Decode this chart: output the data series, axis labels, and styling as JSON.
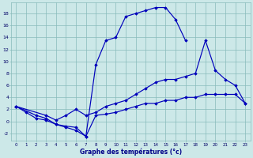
{
  "bg_color": "#cce8e8",
  "grid_color": "#88bbbb",
  "line_color": "#0000bb",
  "xlabel": "Graphe des températures (°c)",
  "xlabel_color": "#000088",
  "xlim": [
    -0.5,
    23.5
  ],
  "ylim": [
    -3.2,
    19.8
  ],
  "xtick_vals": [
    0,
    1,
    2,
    3,
    4,
    5,
    6,
    7,
    8,
    9,
    10,
    11,
    12,
    13,
    14,
    15,
    16,
    17,
    18,
    19,
    20,
    21,
    22,
    23
  ],
  "ytick_vals": [
    -2,
    0,
    2,
    4,
    6,
    8,
    10,
    12,
    14,
    16,
    18
  ],
  "curve1_x": [
    0,
    1,
    2,
    3,
    4,
    5,
    6,
    7,
    8,
    9,
    10,
    11,
    12,
    13,
    14,
    15,
    16,
    17
  ],
  "curve1_y": [
    2.5,
    1.5,
    0.5,
    0.2,
    -0.5,
    -1.0,
    -1.5,
    -2.5,
    9.5,
    13.5,
    14.0,
    17.5,
    18.0,
    18.5,
    19.0,
    19.0,
    17.0,
    13.5
  ],
  "curve2_x": [
    0,
    3,
    4,
    5,
    6,
    7,
    8,
    9,
    10,
    11,
    12,
    13,
    14,
    15,
    16,
    17,
    18,
    19,
    20,
    21,
    22,
    23
  ],
  "curve2_y": [
    2.5,
    1.0,
    0.2,
    1.0,
    2.0,
    1.0,
    1.5,
    2.5,
    3.0,
    3.5,
    4.5,
    5.5,
    6.5,
    7.0,
    7.0,
    7.5,
    8.0,
    13.5,
    8.5,
    7.0,
    6.0,
    3.0
  ],
  "curve3_x": [
    0,
    2,
    3,
    4,
    5,
    6,
    7,
    8,
    9,
    10,
    11,
    12,
    13,
    14,
    15,
    16,
    17,
    18,
    19,
    20,
    21,
    22,
    23
  ],
  "curve3_y": [
    2.5,
    1.0,
    0.5,
    -0.5,
    -0.8,
    -1.0,
    -2.5,
    1.0,
    1.2,
    1.5,
    2.0,
    2.5,
    3.0,
    3.0,
    3.5,
    3.5,
    4.0,
    4.0,
    4.5,
    4.5,
    4.5,
    4.5,
    3.0
  ]
}
